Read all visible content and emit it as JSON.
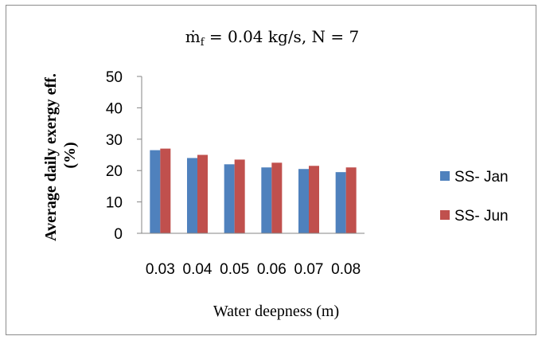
{
  "chart_data": {
    "type": "bar",
    "title": "ṁ_f = 0.04 kg/s, N = 7",
    "title_parts": {
      "main": "ṁ",
      "sub": "f",
      "rest": " = 0.04 kg/s, N = 7"
    },
    "xlabel": "Water deepness  (m)",
    "ylabel": "Average daily exergy eff. (%)",
    "ylabel_lines": [
      "Average daily exergy eff.",
      "(%)"
    ],
    "categories": [
      "0.03",
      "0.04",
      "0.05",
      "0.06",
      "0.07",
      "0.08"
    ],
    "series": [
      {
        "name": "SS- Jan",
        "color": "#4f81bd",
        "values": [
          26.5,
          24.0,
          22.0,
          21.0,
          20.5,
          19.5
        ]
      },
      {
        "name": "SS- Jun",
        "color": "#c0504d",
        "values": [
          27.0,
          25.0,
          23.5,
          22.5,
          21.5,
          21.0
        ]
      }
    ],
    "ylim": [
      0,
      50
    ],
    "yticks": [
      0,
      10,
      20,
      30,
      40,
      50
    ],
    "grid": false,
    "legend_position": "right"
  }
}
